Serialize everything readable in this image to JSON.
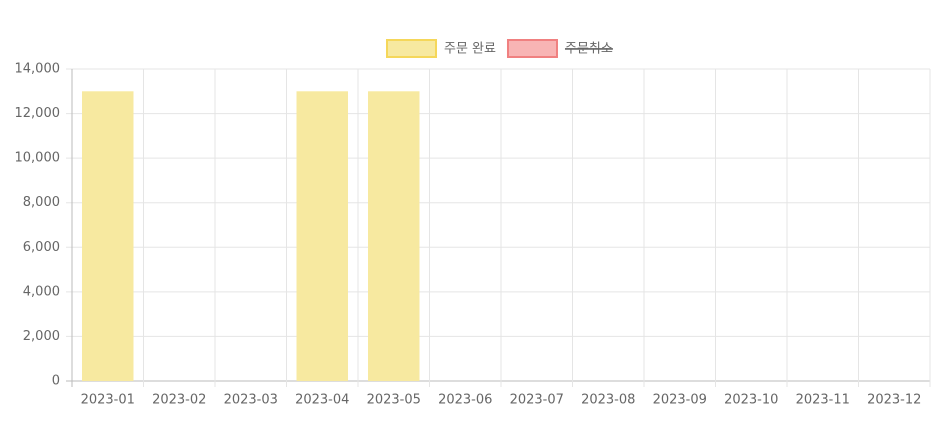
{
  "chart_data": {
    "type": "bar",
    "categories": [
      "2023-01",
      "2023-02",
      "2023-03",
      "2023-04",
      "2023-05",
      "2023-06",
      "2023-07",
      "2023-08",
      "2023-09",
      "2023-10",
      "2023-11",
      "2023-12"
    ],
    "series": [
      {
        "name": "주문 완료",
        "color": "#f5d75a",
        "fill": "#f7e9a0",
        "hidden": false,
        "values": [
          13000,
          0,
          0,
          13000,
          13000,
          0,
          0,
          0,
          0,
          0,
          0,
          0
        ]
      },
      {
        "name": "주문취소",
        "color": "#f08080",
        "fill": "#f8b4b4",
        "hidden": true,
        "values": [
          null,
          null,
          null,
          null,
          null,
          null,
          null,
          null,
          null,
          null,
          null,
          null
        ]
      }
    ],
    "ylim": [
      0,
      14000
    ],
    "yticks": [
      0,
      {
        "value": 2000,
        "label": "2,000"
      },
      {
        "value": 4000,
        "label": "4,000"
      },
      {
        "value": 6000,
        "label": "6,000"
      },
      {
        "value": 8000,
        "label": "8,000"
      },
      {
        "value": 10000,
        "label": "10,000"
      },
      {
        "value": 12000,
        "label": "12,000"
      },
      {
        "value": 14000,
        "label": "14,000"
      }
    ],
    "grid": true,
    "legend": "top"
  }
}
